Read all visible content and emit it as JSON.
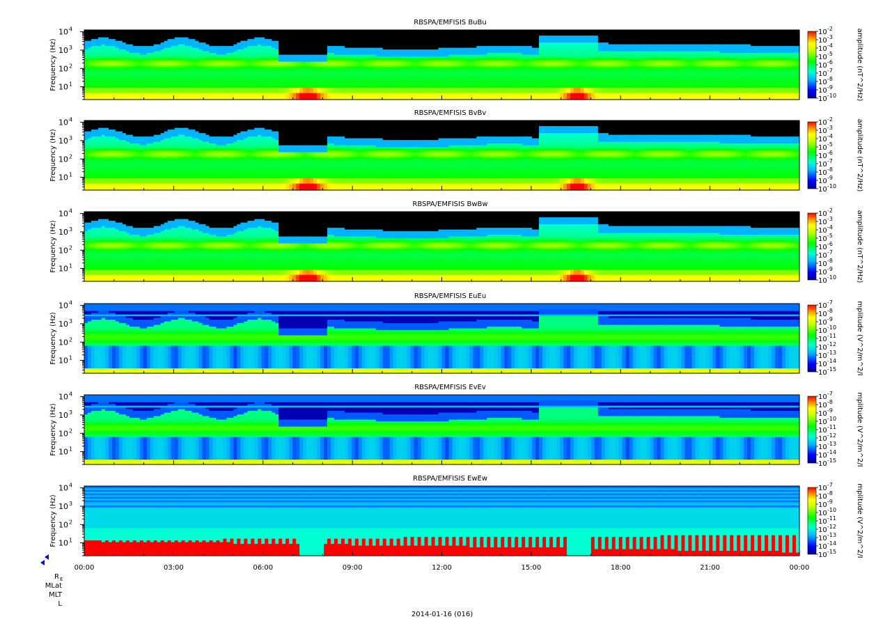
{
  "chart_data": {
    "type": "heatmap",
    "date_label": "2014-01-16 (016)",
    "x_ticks": [
      "00:00",
      "03:00",
      "06:00",
      "09:00",
      "12:00",
      "15:00",
      "18:00",
      "21:00",
      "00:00"
    ],
    "y_axis_label": "Frequency (Hz)",
    "y_tick_labels": [
      {
        "base": "10",
        "exp": "1"
      },
      {
        "base": "10",
        "exp": "2"
      },
      {
        "base": "10",
        "exp": "3"
      },
      {
        "base": "10",
        "exp": "4"
      }
    ],
    "y_scale": "log",
    "ephemeris_rows": [
      {
        "main": "R",
        "sub": "E"
      },
      {
        "main": "MLat",
        "sub": ""
      },
      {
        "main": "MLT",
        "sub": ""
      },
      {
        "main": "L",
        "sub": ""
      }
    ],
    "panels": [
      {
        "title": "RBSPA/EMFISIS  BuBu",
        "kind": "B",
        "colorbar_label": "amplitude (nT^2/Hz)",
        "cb_exps": [
          "-2",
          "-3",
          "-4",
          "-5",
          "-6",
          "-7",
          "-8",
          "-9",
          "-10"
        ]
      },
      {
        "title": "RBSPA/EMFISIS  BvBv",
        "kind": "B",
        "colorbar_label": "amplitude (nT^2/Hz)",
        "cb_exps": [
          "-2",
          "-3",
          "-4",
          "-5",
          "-6",
          "-7",
          "-8",
          "-9",
          "-10"
        ]
      },
      {
        "title": "RBSPA/EMFISIS  BwBw",
        "kind": "B",
        "colorbar_label": "amplitude (nT^2/Hz)",
        "cb_exps": [
          "-2",
          "-3",
          "-4",
          "-5",
          "-6",
          "-7",
          "-8",
          "-9",
          "-10"
        ]
      },
      {
        "title": "RBSPA/EMFISIS  EuEu",
        "kind": "E",
        "colorbar_label": "mplitude (V^2/m^2/I",
        "cb_exps": [
          "-7",
          "-8",
          "-9",
          "-10",
          "-11",
          "-12",
          "-13",
          "-14",
          "-15"
        ]
      },
      {
        "title": "RBSPA/EMFISIS  EvEv",
        "kind": "E",
        "colorbar_label": "mplitude (V^2/m^2/I",
        "cb_exps": [
          "-7",
          "-8",
          "-9",
          "-10",
          "-11",
          "-12",
          "-13",
          "-14",
          "-15"
        ]
      },
      {
        "title": "RBSPA/EMFISIS  EwEw",
        "kind": "Ew",
        "colorbar_label": "mplitude (V^2/m^2/I",
        "cb_exps": [
          "-7",
          "-8",
          "-9",
          "-10",
          "-11",
          "-12",
          "-13",
          "-14",
          "-15"
        ]
      }
    ]
  }
}
